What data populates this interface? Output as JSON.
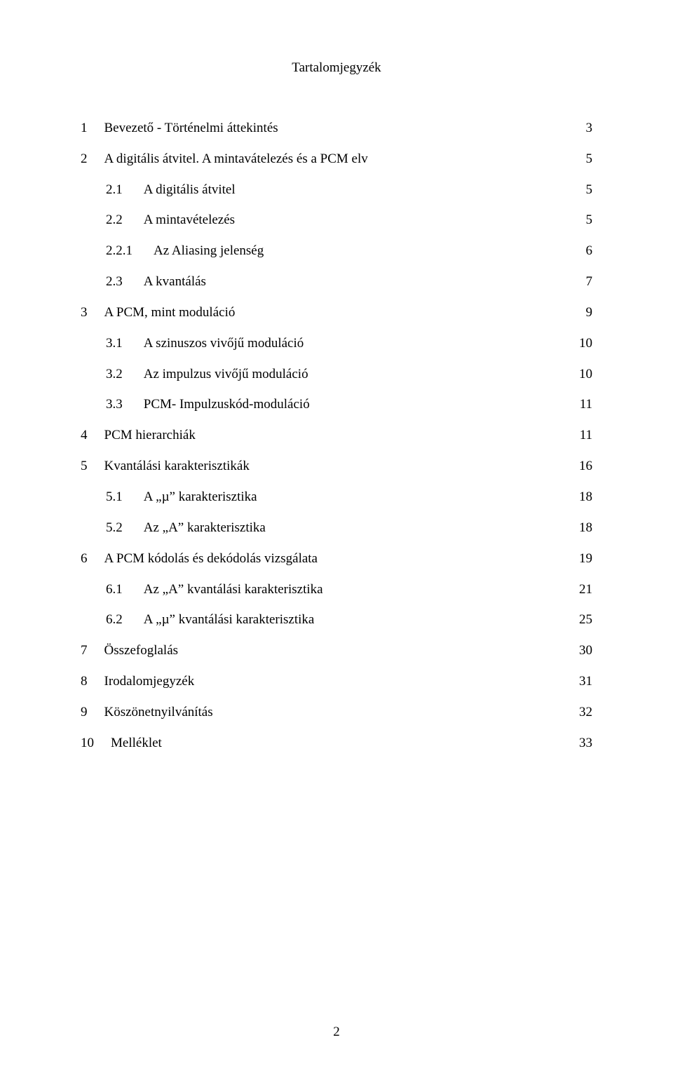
{
  "title": "Tartalomjegyzék",
  "pageNumberBottom": "2",
  "entries": [
    {
      "level": 0,
      "num": "1",
      "text": "Bevezető - Történelmi áttekintés",
      "page": "3"
    },
    {
      "level": 0,
      "num": "2",
      "text": "A digitális átvitel. A mintavátelezés és a PCM elv",
      "page": "5"
    },
    {
      "level": 1,
      "num": "2.1",
      "text": "A digitális átvitel",
      "page": "5"
    },
    {
      "level": 1,
      "num": "2.2",
      "text": "A mintavételezés",
      "page": "5"
    },
    {
      "level": 1,
      "num": "2.2.1",
      "text": "Az Aliasing jelenség",
      "page": "6"
    },
    {
      "level": 1,
      "num": "2.3",
      "text": "A kvantálás",
      "page": "7"
    },
    {
      "level": 0,
      "num": "3",
      "text": "A PCM, mint moduláció",
      "page": "9"
    },
    {
      "level": 1,
      "num": "3.1",
      "text": "A szinuszos vivőjű moduláció",
      "page": "10"
    },
    {
      "level": 1,
      "num": "3.2",
      "text": "Az impulzus vivőjű moduláció",
      "page": "10"
    },
    {
      "level": 1,
      "num": "3.3",
      "text": "PCM- Impulzuskód-moduláció",
      "page": "11"
    },
    {
      "level": 0,
      "num": "4",
      "text": "PCM hierarchiák",
      "page": "11"
    },
    {
      "level": 0,
      "num": "5",
      "text": "Kvantálási karakterisztikák",
      "page": "16"
    },
    {
      "level": 1,
      "num": "5.1",
      "text": "A „µ” karakterisztika",
      "page": "18"
    },
    {
      "level": 1,
      "num": "5.2",
      "text": "Az „A” karakterisztika",
      "page": "18"
    },
    {
      "level": 0,
      "num": "6",
      "text": "A PCM kódolás és dekódolás vizsgálata",
      "page": "19"
    },
    {
      "level": 1,
      "num": "6.1",
      "text": "Az „A” kvantálási karakterisztika",
      "page": "21"
    },
    {
      "level": 1,
      "num": "6.2",
      "text": "A „µ” kvantálási karakterisztika",
      "page": "25"
    },
    {
      "level": 0,
      "num": "7",
      "text": "Összefoglalás",
      "page": "30"
    },
    {
      "level": 0,
      "num": "8",
      "text": "Irodalomjegyzék",
      "page": "31"
    },
    {
      "level": 0,
      "num": "9",
      "text": "Köszönetnyilvánítás",
      "page": "32"
    },
    {
      "level": 0,
      "num": "10",
      "text": "Melléklet",
      "page": "33"
    }
  ],
  "layout": {
    "numGapLevel0": "24px",
    "numGapLevel1": "30px"
  }
}
